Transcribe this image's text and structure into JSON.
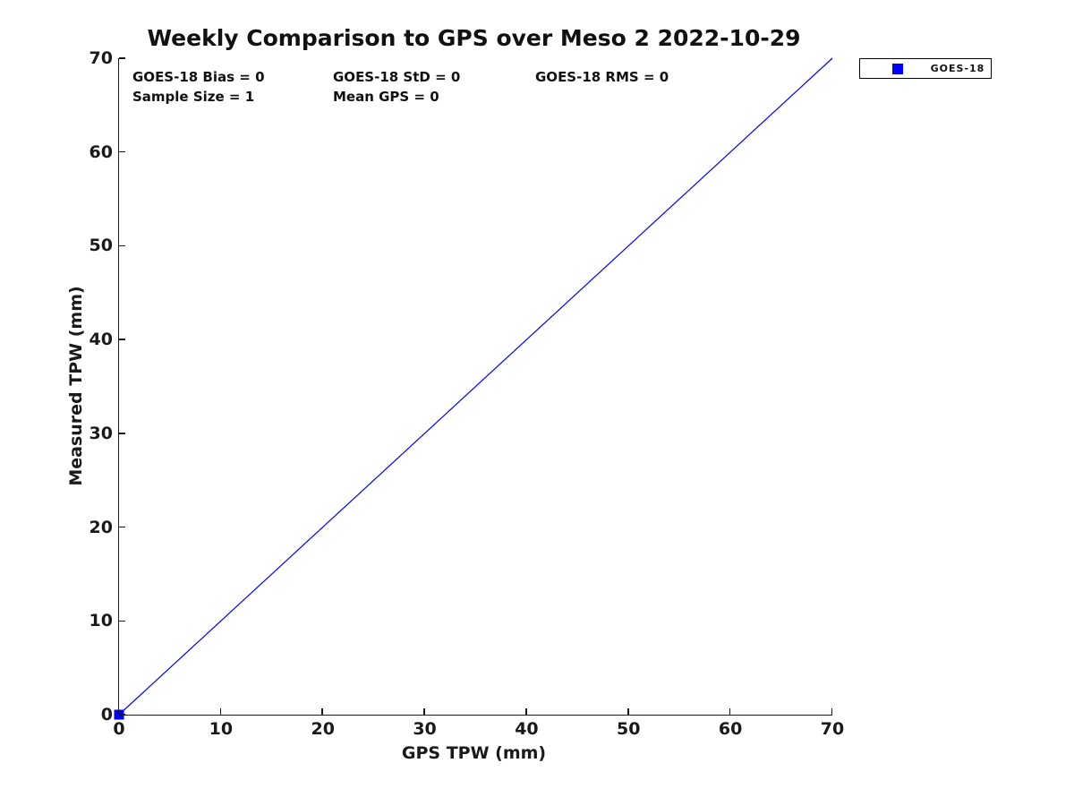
{
  "chart_data": {
    "type": "scatter",
    "title": "Weekly Comparison to GPS over Meso 2 2022-10-29",
    "xlabel": "GPS TPW (mm)",
    "ylabel": "Measured TPW (mm)",
    "xlim": [
      0,
      70
    ],
    "ylim": [
      0,
      70
    ],
    "x_ticks": [
      0,
      10,
      20,
      30,
      40,
      50,
      60,
      70
    ],
    "y_ticks": [
      0,
      10,
      20,
      30,
      40,
      50,
      60,
      70
    ],
    "grid": false,
    "series": [
      {
        "name": "GOES-18",
        "marker": "square",
        "color": "#0000ff",
        "points": [
          {
            "x": 0,
            "y": 0
          }
        ]
      }
    ],
    "identity_line": {
      "x": [
        0,
        70
      ],
      "y": [
        0,
        70
      ],
      "color": "#0000ff",
      "width": 1.2
    },
    "annotations": [
      {
        "text": "GOES-18 Bias = 0"
      },
      {
        "text": "GOES-18 StD = 0"
      },
      {
        "text": "GOES-18 RMS = 0"
      },
      {
        "text": "Sample Size = 1"
      },
      {
        "text": "Mean GPS = 0"
      }
    ],
    "legend": {
      "position": "outside-top-right",
      "entries": [
        {
          "label": "GOES-18",
          "color": "#0000ff",
          "marker": "square"
        }
      ]
    },
    "colors": {
      "background": "#ffffff",
      "axis": "#1a1a1a",
      "text": "#111111",
      "series_blue": "#0000ff"
    }
  }
}
